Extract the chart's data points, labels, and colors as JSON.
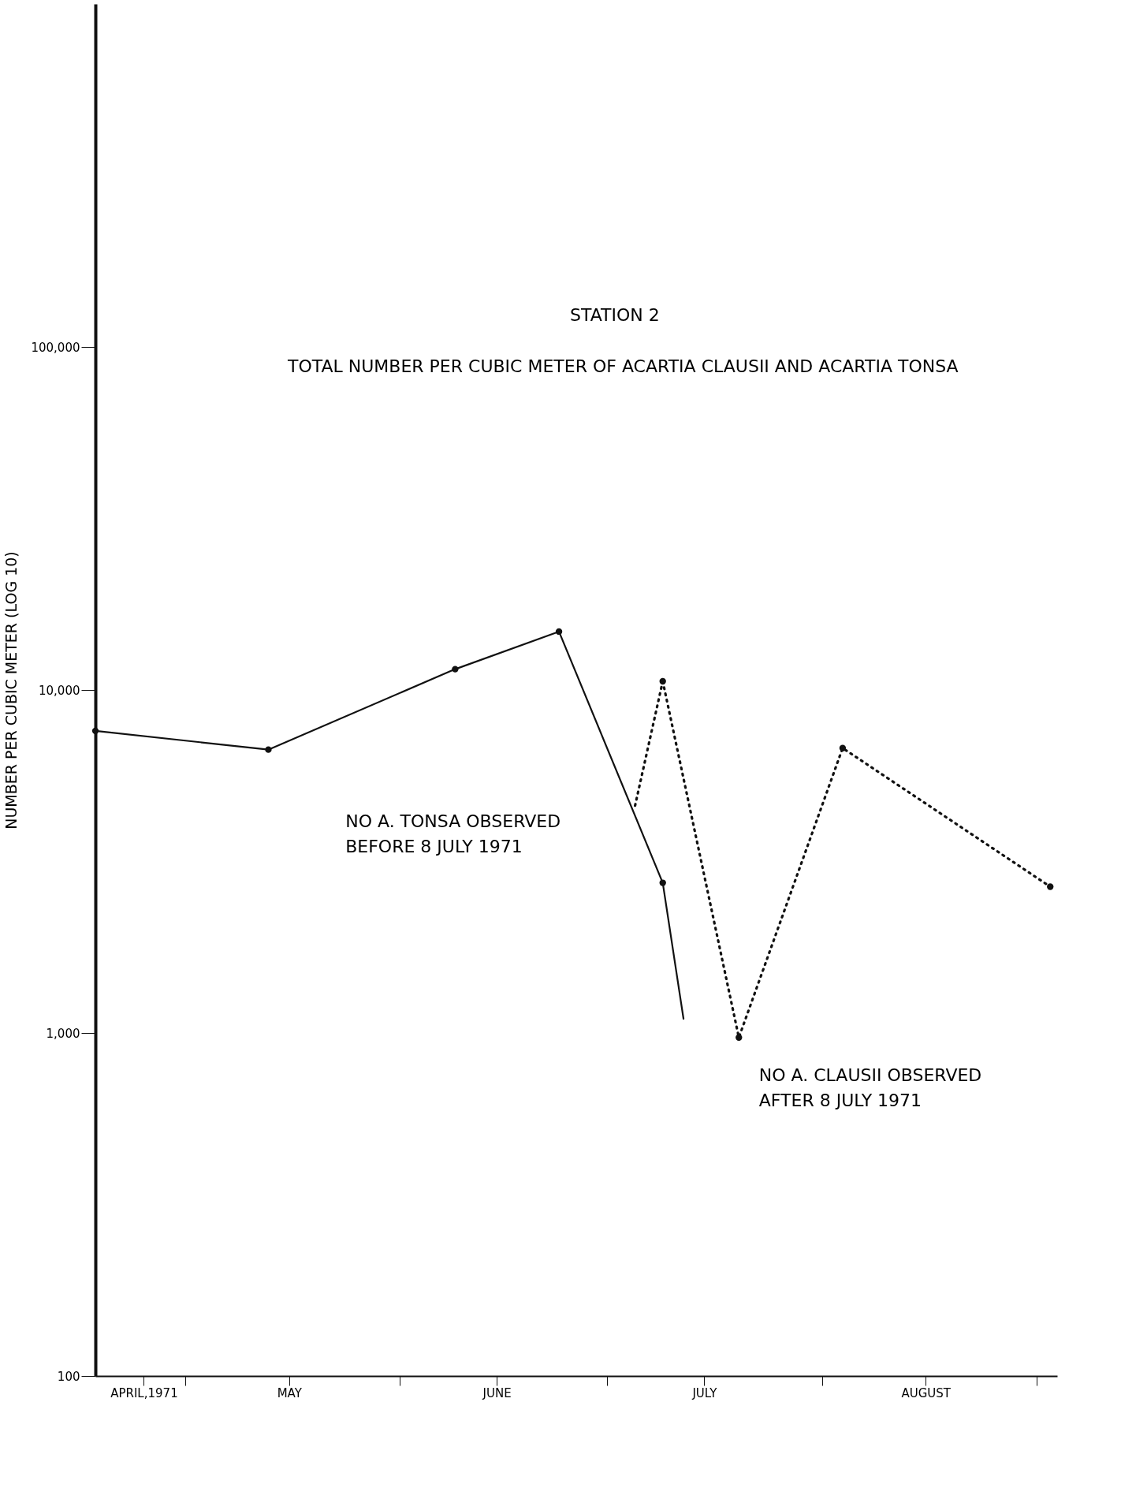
{
  "chart_data": {
    "type": "line",
    "title": "STATION 2",
    "subtitle": "TOTAL NUMBER PER CUBIC METER OF ACARTIA CLAUSII AND ACARTIA TONSA",
    "ylabel": "NUMBER PER CUBIC METER (LOG 10)",
    "log": "y",
    "xlim": [
      "1971-04-18",
      "1971-09-04"
    ],
    "xticks": [
      {
        "value": "1971-04-25",
        "label": "APRIL,1971"
      },
      {
        "value": "1971-05-01",
        "label": null
      },
      {
        "value": "1971-05-16",
        "label": "MAY"
      },
      {
        "value": "1971-06-01",
        "label": null
      },
      {
        "value": "1971-06-15",
        "label": "JUNE"
      },
      {
        "value": "1971-07-01",
        "label": null
      },
      {
        "value": "1971-07-15",
        "label": "JULY"
      },
      {
        "value": "1971-08-01",
        "label": null
      },
      {
        "value": "1971-08-16",
        "label": "AUGUST"
      },
      {
        "value": "1971-09-01",
        "label": null
      }
    ],
    "ylim": [
      100,
      1000000
    ],
    "yticks": [
      {
        "value": 100,
        "label": "100"
      },
      {
        "value": 1000,
        "label": "1,000"
      },
      {
        "value": 10000,
        "label": "10,000"
      },
      {
        "value": 100000,
        "label": "100,000"
      }
    ],
    "series": [
      {
        "color": "#111111",
        "line_style": "solid",
        "marker": "circle",
        "x": [
          "1971-04-18",
          "1971-05-13",
          "1971-06-09",
          "1971-06-24",
          "1971-07-09"
        ],
        "values": [
          7600,
          6700,
          11500,
          14800,
          2740
        ]
      },
      {
        "color": "#111111",
        "line_style": "solid",
        "x": [
          "1971-07-09",
          "1971-07-12"
        ],
        "values": [
          2740,
          1100
        ]
      },
      {
        "color": "#111111",
        "line_style": "dotted",
        "x": [
          "1971-07-05",
          "1971-07-09"
        ],
        "values": [
          4600,
          10600
        ]
      },
      {
        "color": "#111111",
        "line_style": "dotted",
        "marker": "circle",
        "x": [
          "1971-07-09",
          "1971-07-20",
          "1971-08-04",
          "1971-09-03"
        ],
        "values": [
          10600,
          970,
          6770,
          2670
        ]
      }
    ],
    "annotations": [
      "NO A. TONSA OBSERVED\nBEFORE 8 JULY 1971",
      "NO A. CLAUSII OBSERVED\nAFTER 8 JULY 1971"
    ]
  }
}
